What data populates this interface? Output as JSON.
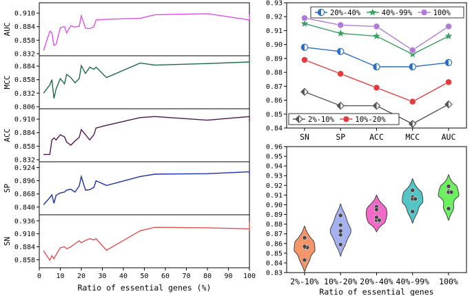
{
  "chart_data": [
    {
      "id": "left_panels",
      "type": "line",
      "xlabel": "Ratio of essential genes (%)",
      "xlim": [
        0,
        100
      ],
      "xticks": [
        0,
        10,
        20,
        30,
        40,
        50,
        60,
        70,
        80,
        90,
        100
      ],
      "x": [
        2,
        5,
        6,
        7,
        8,
        10,
        12,
        13,
        15,
        17,
        19,
        20,
        22,
        24,
        26,
        27,
        32,
        48,
        55,
        80,
        100
      ],
      "panels": [
        {
          "name": "AUC",
          "color": "#e04de8",
          "ylim": [
            0.832,
            0.926
          ],
          "yticks": [
            "0.832",
            "0.858",
            "0.884",
            "0.910"
          ],
          "values": [
            0.838,
            0.875,
            0.872,
            0.848,
            0.85,
            0.882,
            0.884,
            0.872,
            0.886,
            0.883,
            0.885,
            0.905,
            0.881,
            0.88,
            0.884,
            0.897,
            0.898,
            0.9,
            0.907,
            0.909,
            0.897
          ],
          "end_segment": [
            0.897,
            0.907
          ]
        },
        {
          "name": "MCC",
          "color": "#1a6a45",
          "ylim": [
            0.806,
            0.9
          ],
          "yticks": [
            "0.806",
            "0.832",
            "0.858",
            "0.884"
          ],
          "values": [
            0.832,
            0.848,
            0.858,
            0.822,
            0.84,
            0.86,
            0.85,
            0.868,
            0.862,
            0.852,
            0.86,
            0.885,
            0.87,
            0.882,
            0.878,
            0.882,
            0.862,
            0.89,
            0.886,
            0.889,
            0.892
          ],
          "end_segment": [
            0.884,
            0.892
          ]
        },
        {
          "name": "ACC",
          "color": "#4d1450",
          "ylim": [
            0.832,
            0.926
          ],
          "yticks": [
            "0.832",
            "0.858",
            "0.884",
            "0.910"
          ],
          "values": [
            0.842,
            0.842,
            0.87,
            0.874,
            0.87,
            0.88,
            0.876,
            0.866,
            0.86,
            0.868,
            0.875,
            0.89,
            0.88,
            0.87,
            0.88,
            0.893,
            0.898,
            0.913,
            0.915,
            0.908,
            0.915
          ],
          "end_segment": [
            0.905,
            0.916
          ]
        },
        {
          "name": "SP",
          "color": "#1a2ea8",
          "ylim": [
            0.828,
            0.932
          ],
          "yticks": [
            "0.840",
            "0.868",
            "0.896",
            "0.924"
          ],
          "values": [
            0.845,
            0.86,
            0.866,
            0.848,
            0.865,
            0.87,
            0.872,
            0.876,
            0.878,
            0.872,
            0.885,
            0.905,
            0.876,
            0.877,
            0.882,
            0.896,
            0.886,
            0.905,
            0.91,
            0.911,
            0.915
          ],
          "end_segment": [
            0.908,
            0.92
          ]
        },
        {
          "name": "SN",
          "color": "#e25050",
          "ylim": [
            0.846,
            0.944
          ],
          "yticks": [
            "0.858",
            "0.884",
            "0.910",
            "0.936"
          ],
          "values": [
            0.876,
            0.857,
            0.866,
            0.86,
            0.868,
            0.882,
            0.884,
            0.88,
            0.884,
            0.89,
            0.896,
            0.892,
            0.897,
            0.9,
            0.898,
            0.9,
            0.877,
            0.916,
            0.923,
            0.922,
            0.92
          ],
          "end_segment": [
            0.916,
            0.934
          ]
        }
      ]
    },
    {
      "id": "top_right",
      "type": "line",
      "categories": [
        "SN",
        "SP",
        "ACC",
        "MCC",
        "AUC"
      ],
      "ylim": [
        0.84,
        0.93
      ],
      "yticks": [
        "0.84",
        "0.85",
        "0.86",
        "0.87",
        "0.88",
        "0.89",
        "0.90",
        "0.91",
        "0.92",
        "0.93"
      ],
      "series": [
        {
          "name": "2%-10%",
          "color": "#555555",
          "marker": "diamond",
          "values": [
            0.866,
            0.856,
            0.856,
            0.843,
            0.857
          ]
        },
        {
          "name": "10%-20%",
          "color": "#e23c3c",
          "marker": "circle",
          "values": [
            0.889,
            0.879,
            0.869,
            0.859,
            0.873
          ]
        },
        {
          "name": "20%-40%",
          "color": "#2b6fc2",
          "marker": "half-circle",
          "values": [
            0.898,
            0.895,
            0.884,
            0.884,
            0.887
          ]
        },
        {
          "name": "40%-99%",
          "color": "#3aa060",
          "marker": "star",
          "values": [
            0.915,
            0.908,
            0.906,
            0.893,
            0.906
          ]
        },
        {
          "name": "100%",
          "color": "#b07ad8",
          "marker": "circle",
          "values": [
            0.919,
            0.914,
            0.913,
            0.896,
            0.913
          ]
        }
      ],
      "legend_top": [
        "20%-40%",
        "40%-99%",
        "100%"
      ],
      "legend_bottom": [
        "2%-10%",
        "10%-20%"
      ]
    },
    {
      "id": "bottom_right",
      "type": "violin",
      "xlabel": "Ratio of essential genes",
      "ylim": [
        0.83,
        0.96
      ],
      "yticks": [
        "0.83",
        "0.84",
        "0.85",
        "0.86",
        "0.87",
        "0.88",
        "0.89",
        "0.90",
        "0.91",
        "0.92",
        "0.93",
        "0.94",
        "0.95",
        "0.96"
      ],
      "groups": [
        {
          "name": "2%-10%",
          "color": "#f5956a",
          "points": [
            0.843,
            0.856,
            0.856,
            0.866,
            0.857
          ]
        },
        {
          "name": "10%-20%",
          "color": "#a6b2f0",
          "points": [
            0.889,
            0.879,
            0.869,
            0.859,
            0.873
          ]
        },
        {
          "name": "20%-40%",
          "color": "#f06bc8",
          "points": [
            0.898,
            0.895,
            0.884,
            0.884,
            0.887
          ]
        },
        {
          "name": "40%-99%",
          "color": "#55c4c4",
          "points": [
            0.915,
            0.908,
            0.906,
            0.893,
            0.906
          ]
        },
        {
          "name": "100%",
          "color": "#6df060",
          "points": [
            0.919,
            0.914,
            0.913,
            0.896,
            0.913
          ]
        }
      ]
    }
  ]
}
